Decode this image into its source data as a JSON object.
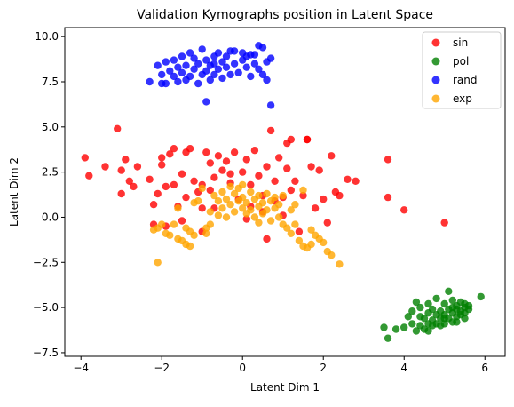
{
  "chart_data": {
    "type": "scatter",
    "title": "Validation Kymographs position in Latent Space",
    "xlabel": "Latent Dim 1",
    "ylabel": "Latent Dim 2",
    "xlim": [
      -4.4,
      6.5
    ],
    "ylim": [
      -7.7,
      10.5
    ],
    "xticks": [
      -4,
      -2,
      0,
      2,
      4,
      6
    ],
    "xtick_labels": [
      "−4",
      "−2",
      "0",
      "2",
      "4",
      "6"
    ],
    "yticks": [
      -7.5,
      -5.0,
      -2.5,
      0.0,
      2.5,
      5.0,
      7.5,
      10.0
    ],
    "ytick_labels": [
      "−7.5",
      "−5.0",
      "−2.5",
      "0.0",
      "2.5",
      "5.0",
      "7.5",
      "10.0"
    ],
    "grid": false,
    "legend_position": "top-right",
    "series": [
      {
        "name": "sin",
        "color": "#ff0000",
        "points": [
          [
            -3.9,
            3.3
          ],
          [
            -3.8,
            2.3
          ],
          [
            -3.4,
            2.8
          ],
          [
            -3.1,
            4.9
          ],
          [
            -3.0,
            2.6
          ],
          [
            -3.0,
            1.3
          ],
          [
            -2.9,
            3.2
          ],
          [
            -2.8,
            2.0
          ],
          [
            -2.7,
            1.7
          ],
          [
            -2.6,
            2.8
          ],
          [
            -2.3,
            2.1
          ],
          [
            -2.2,
            0.7
          ],
          [
            -2.2,
            -0.4
          ],
          [
            -2.1,
            1.3
          ],
          [
            -2.0,
            2.9
          ],
          [
            -2.0,
            3.3
          ],
          [
            -1.9,
            1.7
          ],
          [
            -1.8,
            3.5
          ],
          [
            -1.7,
            3.8
          ],
          [
            -1.7,
            1.8
          ],
          [
            -1.6,
            0.6
          ],
          [
            -1.5,
            2.4
          ],
          [
            -1.5,
            -0.2
          ],
          [
            -1.4,
            1.1
          ],
          [
            -1.4,
            3.6
          ],
          [
            -1.3,
            3.8
          ],
          [
            -1.2,
            2.0
          ],
          [
            -1.1,
            1.4
          ],
          [
            -1.0,
            0.5
          ],
          [
            -1.0,
            1.8
          ],
          [
            -0.9,
            3.6
          ],
          [
            -0.8,
            3.0
          ],
          [
            -0.8,
            1.5
          ],
          [
            -0.7,
            0.5
          ],
          [
            -0.7,
            2.2
          ],
          [
            -0.6,
            3.4
          ],
          [
            -0.5,
            2.6
          ],
          [
            -0.4,
            3.1
          ],
          [
            -0.3,
            1.9
          ],
          [
            -0.3,
            2.4
          ],
          [
            -0.2,
            3.6
          ],
          [
            -0.1,
            1.0
          ],
          [
            0.0,
            2.5
          ],
          [
            0.1,
            3.2
          ],
          [
            0.2,
            1.8
          ],
          [
            0.2,
            0.6
          ],
          [
            0.3,
            3.7
          ],
          [
            0.4,
            2.3
          ],
          [
            0.5,
            1.2
          ],
          [
            0.5,
            0.3
          ],
          [
            0.6,
            2.8
          ],
          [
            0.6,
            -1.2
          ],
          [
            0.7,
            4.8
          ],
          [
            0.8,
            2.0
          ],
          [
            0.8,
            0.9
          ],
          [
            0.9,
            3.3
          ],
          [
            1.0,
            1.1
          ],
          [
            1.0,
            0.1
          ],
          [
            1.1,
            2.7
          ],
          [
            1.1,
            4.1
          ],
          [
            1.2,
            1.5
          ],
          [
            1.2,
            4.3
          ],
          [
            1.3,
            2.0
          ],
          [
            1.4,
            -0.8
          ],
          [
            1.5,
            1.2
          ],
          [
            1.6,
            4.3
          ],
          [
            1.6,
            4.3
          ],
          [
            1.7,
            2.8
          ],
          [
            1.8,
            0.5
          ],
          [
            1.9,
            2.6
          ],
          [
            2.0,
            1.0
          ],
          [
            2.1,
            -0.3
          ],
          [
            2.2,
            3.4
          ],
          [
            2.3,
            1.4
          ],
          [
            2.4,
            1.2
          ],
          [
            2.6,
            2.1
          ],
          [
            2.8,
            2.0
          ],
          [
            -1.9,
            -0.5
          ],
          [
            -1.0,
            -0.8
          ],
          [
            0.1,
            -0.1
          ],
          [
            3.6,
            3.2
          ],
          [
            3.6,
            1.1
          ],
          [
            4.0,
            0.4
          ],
          [
            5.0,
            -0.3
          ]
        ]
      },
      {
        "name": "pol",
        "color": "#008000",
        "points": [
          [
            3.5,
            -6.1
          ],
          [
            3.6,
            -6.7
          ],
          [
            3.8,
            -6.2
          ],
          [
            4.0,
            -6.1
          ],
          [
            4.1,
            -5.5
          ],
          [
            4.2,
            -5.2
          ],
          [
            4.2,
            -5.9
          ],
          [
            4.3,
            -6.3
          ],
          [
            4.3,
            -4.7
          ],
          [
            4.4,
            -5.5
          ],
          [
            4.4,
            -6.0
          ],
          [
            4.5,
            -5.6
          ],
          [
            4.5,
            -6.2
          ],
          [
            4.6,
            -4.8
          ],
          [
            4.6,
            -5.9
          ],
          [
            4.6,
            -5.3
          ],
          [
            4.7,
            -5.7
          ],
          [
            4.7,
            -6.0
          ],
          [
            4.7,
            -5.1
          ],
          [
            4.8,
            -5.4
          ],
          [
            4.8,
            -4.5
          ],
          [
            4.8,
            -5.9
          ],
          [
            4.9,
            -5.2
          ],
          [
            4.9,
            -5.6
          ],
          [
            5.0,
            -4.8
          ],
          [
            5.0,
            -5.4
          ],
          [
            5.0,
            -5.9
          ],
          [
            5.1,
            -5.1
          ],
          [
            5.1,
            -5.6
          ],
          [
            5.1,
            -4.1
          ],
          [
            5.2,
            -4.6
          ],
          [
            5.2,
            -5.3
          ],
          [
            5.2,
            -5.0
          ],
          [
            5.3,
            -5.5
          ],
          [
            5.3,
            -4.9
          ],
          [
            5.3,
            -5.8
          ],
          [
            5.4,
            -5.2
          ],
          [
            5.4,
            -4.7
          ],
          [
            5.4,
            -5.4
          ],
          [
            5.5,
            -5.0
          ],
          [
            5.5,
            -5.6
          ],
          [
            5.5,
            -5.3
          ],
          [
            5.6,
            -5.1
          ],
          [
            5.6,
            -4.9
          ],
          [
            4.4,
            -5.0
          ],
          [
            4.6,
            -6.3
          ],
          [
            4.9,
            -6.0
          ],
          [
            5.0,
            -5.6
          ],
          [
            5.2,
            -5.8
          ],
          [
            5.3,
            -5.1
          ],
          [
            5.5,
            -4.8
          ],
          [
            5.9,
            -4.4
          ]
        ]
      },
      {
        "name": "rand",
        "color": "#0000ff",
        "points": [
          [
            -2.3,
            7.5
          ],
          [
            -2.1,
            8.4
          ],
          [
            -2.0,
            7.9
          ],
          [
            -2.0,
            7.4
          ],
          [
            -1.9,
            8.6
          ],
          [
            -1.8,
            8.1
          ],
          [
            -1.7,
            8.7
          ],
          [
            -1.7,
            7.8
          ],
          [
            -1.6,
            8.3
          ],
          [
            -1.6,
            7.5
          ],
          [
            -1.5,
            8.9
          ],
          [
            -1.5,
            8.0
          ],
          [
            -1.4,
            7.6
          ],
          [
            -1.4,
            8.4
          ],
          [
            -1.3,
            9.1
          ],
          [
            -1.3,
            7.8
          ],
          [
            -1.2,
            8.2
          ],
          [
            -1.2,
            8.8
          ],
          [
            -1.1,
            7.4
          ],
          [
            -1.1,
            8.5
          ],
          [
            -1.0,
            7.9
          ],
          [
            -1.0,
            9.3
          ],
          [
            -0.9,
            8.1
          ],
          [
            -0.9,
            8.7
          ],
          [
            -0.8,
            7.6
          ],
          [
            -0.8,
            8.4
          ],
          [
            -0.7,
            8.9
          ],
          [
            -0.7,
            7.9
          ],
          [
            -0.6,
            8.2
          ],
          [
            -0.6,
            9.1
          ],
          [
            -0.5,
            8.6
          ],
          [
            -0.5,
            7.7
          ],
          [
            -0.4,
            8.3
          ],
          [
            -0.4,
            8.9
          ],
          [
            -0.3,
            7.9
          ],
          [
            -0.2,
            8.5
          ],
          [
            -0.2,
            9.2
          ],
          [
            -0.1,
            8.0
          ],
          [
            0.0,
            8.7
          ],
          [
            0.0,
            9.1
          ],
          [
            0.1,
            8.3
          ],
          [
            0.1,
            8.9
          ],
          [
            0.2,
            7.8
          ],
          [
            0.3,
            8.5
          ],
          [
            0.3,
            9.0
          ],
          [
            0.4,
            8.2
          ],
          [
            0.4,
            9.5
          ],
          [
            0.5,
            7.9
          ],
          [
            0.5,
            9.4
          ],
          [
            0.6,
            8.6
          ],
          [
            0.7,
            8.8
          ],
          [
            0.7,
            6.2
          ],
          [
            -0.9,
            6.4
          ],
          [
            -1.9,
            7.4
          ],
          [
            0.2,
            9.0
          ],
          [
            -0.3,
            9.2
          ],
          [
            0.6,
            7.6
          ],
          [
            -0.7,
            8.5
          ]
        ]
      },
      {
        "name": "exp",
        "color": "#ffa500",
        "points": [
          [
            -2.1,
            -2.5
          ],
          [
            -2.2,
            -0.7
          ],
          [
            -2.1,
            -0.6
          ],
          [
            -2.0,
            -0.4
          ],
          [
            -1.9,
            -0.9
          ],
          [
            -1.8,
            -1.0
          ],
          [
            -1.7,
            -0.4
          ],
          [
            -1.6,
            -1.2
          ],
          [
            -1.5,
            -1.3
          ],
          [
            -1.4,
            -0.6
          ],
          [
            -1.4,
            -1.5
          ],
          [
            -1.3,
            -1.6
          ],
          [
            -1.3,
            -0.8
          ],
          [
            -1.2,
            -1.0
          ],
          [
            -1.1,
            0.9
          ],
          [
            -1.0,
            1.6
          ],
          [
            -0.9,
            -0.6
          ],
          [
            -0.9,
            -0.9
          ],
          [
            -0.8,
            0.3
          ],
          [
            -0.8,
            -0.4
          ],
          [
            -0.7,
            1.2
          ],
          [
            -0.6,
            0.1
          ],
          [
            -0.5,
            0.5
          ],
          [
            -0.5,
            1.4
          ],
          [
            -0.4,
            1.0
          ],
          [
            -0.4,
            0.0
          ],
          [
            -0.3,
            1.7
          ],
          [
            -0.3,
            0.7
          ],
          [
            -0.2,
            1.3
          ],
          [
            -0.2,
            0.3
          ],
          [
            -0.1,
            0.9
          ],
          [
            -0.1,
            1.6
          ],
          [
            0.0,
            0.5
          ],
          [
            0.0,
            1.1
          ],
          [
            0.1,
            0.2
          ],
          [
            0.1,
            0.8
          ],
          [
            0.2,
            1.4
          ],
          [
            0.2,
            0.4
          ],
          [
            0.3,
            1.0
          ],
          [
            0.3,
            0.0
          ],
          [
            0.4,
            0.6
          ],
          [
            0.4,
            1.2
          ],
          [
            0.5,
            0.2
          ],
          [
            0.5,
            0.8
          ],
          [
            0.6,
            1.3
          ],
          [
            0.6,
            0.4
          ],
          [
            0.7,
            0.9
          ],
          [
            0.7,
            -0.2
          ],
          [
            0.8,
            0.5
          ],
          [
            0.8,
            1.1
          ],
          [
            0.9,
            0.0
          ],
          [
            0.9,
            0.7
          ],
          [
            1.0,
            -0.4
          ],
          [
            1.0,
            1.2
          ],
          [
            1.1,
            -0.6
          ],
          [
            1.2,
            0.4
          ],
          [
            1.2,
            -0.9
          ],
          [
            1.3,
            -0.4
          ],
          [
            1.4,
            -1.3
          ],
          [
            1.5,
            -1.6
          ],
          [
            1.6,
            -1.7
          ],
          [
            1.7,
            -0.7
          ],
          [
            1.7,
            -1.5
          ],
          [
            1.8,
            -1.0
          ],
          [
            1.9,
            -1.2
          ],
          [
            2.0,
            -1.4
          ],
          [
            2.1,
            -1.9
          ],
          [
            2.2,
            -2.1
          ],
          [
            2.4,
            -2.6
          ],
          [
            1.5,
            1.5
          ],
          [
            -1.6,
            0.5
          ],
          [
            -1.2,
            0.8
          ],
          [
            -0.6,
            0.9
          ],
          [
            0.4,
            -0.3
          ],
          [
            0.0,
            1.8
          ],
          [
            1.3,
            0.7
          ]
        ]
      }
    ]
  }
}
